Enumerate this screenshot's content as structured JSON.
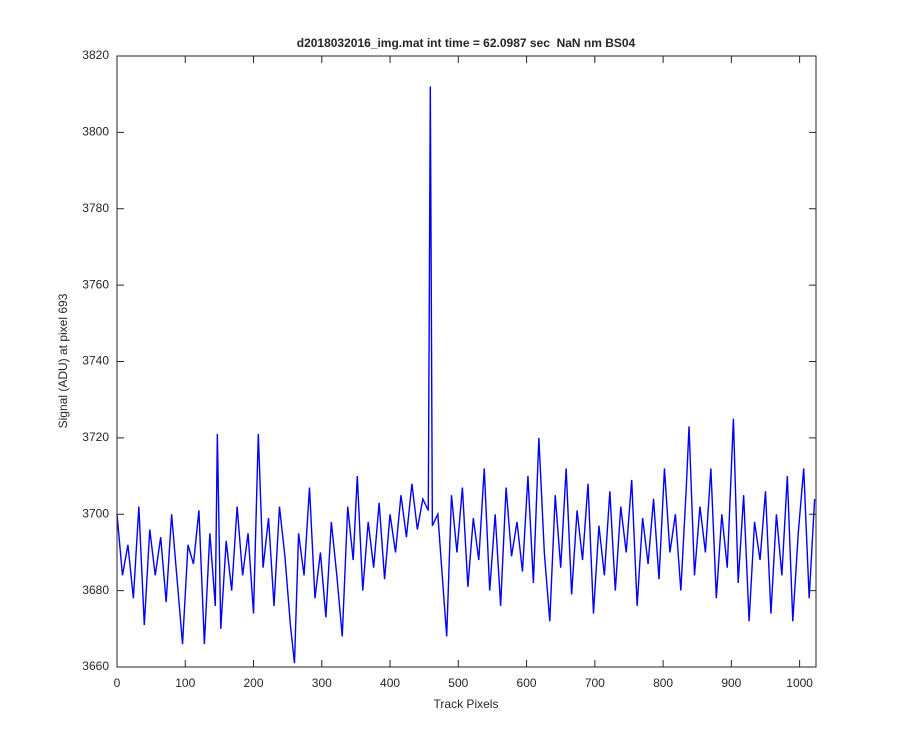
{
  "chart_data": {
    "type": "line",
    "title": "d2018032016_img.mat int time = 62.0987 sec  NaN nm BS04",
    "x_label": "Track Pixels",
    "y_label": "Signal (ADU) at pixel 693",
    "x": [
      0,
      8,
      16,
      24,
      32,
      40,
      48,
      56,
      64,
      72,
      80,
      88,
      96,
      104,
      112,
      120,
      128,
      136,
      144,
      147,
      152,
      160,
      168,
      176,
      184,
      192,
      200,
      207,
      214,
      222,
      230,
      238,
      246,
      254,
      260,
      266,
      274,
      282,
      290,
      298,
      306,
      314,
      322,
      330,
      338,
      346,
      352,
      360,
      368,
      376,
      384,
      392,
      400,
      408,
      416,
      424,
      432,
      440,
      448,
      456,
      459,
      462,
      470,
      476,
      483,
      490,
      498,
      506,
      514,
      522,
      530,
      538,
      546,
      554,
      562,
      570,
      578,
      586,
      594,
      602,
      610,
      618,
      626,
      634,
      642,
      650,
      658,
      666,
      674,
      682,
      690,
      698,
      706,
      714,
      722,
      730,
      738,
      746,
      754,
      762,
      770,
      778,
      786,
      794,
      802,
      810,
      818,
      826,
      834,
      838,
      846,
      854,
      862,
      870,
      878,
      886,
      894,
      903,
      910,
      918,
      926,
      934,
      942,
      950,
      958,
      966,
      974,
      982,
      990,
      998,
      1006,
      1014,
      1022
    ],
    "series": [
      {
        "color": "#0000ff",
        "values": [
          3700,
          3684,
          3692,
          3678,
          3702,
          3671,
          3696,
          3684,
          3694,
          3677,
          3700,
          3683,
          3666,
          3692,
          3687,
          3701,
          3666,
          3695,
          3676,
          3721,
          3670,
          3693,
          3680,
          3702,
          3684,
          3695,
          3674,
          3721,
          3686,
          3699,
          3676,
          3702,
          3689,
          3671,
          3661,
          3695,
          3684,
          3707,
          3678,
          3690,
          3673,
          3698,
          3684,
          3668,
          3702,
          3688,
          3710,
          3680,
          3698,
          3686,
          3703,
          3683,
          3700,
          3690,
          3705,
          3694,
          3708,
          3696,
          3704,
          3701,
          3812,
          3697,
          3700,
          3685,
          3668,
          3705,
          3690,
          3707,
          3681,
          3699,
          3688,
          3712,
          3680,
          3700,
          3676,
          3707,
          3689,
          3698,
          3685,
          3710,
          3682,
          3720,
          3690,
          3672,
          3705,
          3686,
          3712,
          3679,
          3701,
          3688,
          3708,
          3674,
          3697,
          3684,
          3706,
          3680,
          3702,
          3690,
          3709,
          3676,
          3699,
          3687,
          3704,
          3683,
          3712,
          3690,
          3700,
          3680,
          3707,
          3723,
          3684,
          3702,
          3690,
          3712,
          3678,
          3700,
          3686,
          3725,
          3682,
          3705,
          3672,
          3698,
          3688,
          3706,
          3674,
          3700,
          3684,
          3710,
          3672,
          3695,
          3712,
          3678,
          3704
        ]
      }
    ],
    "xlim": [
      0,
      1024
    ],
    "ylim": [
      3660,
      3820
    ],
    "xticks": [
      0,
      100,
      200,
      300,
      400,
      500,
      600,
      700,
      800,
      900,
      1000
    ],
    "yticks": [
      3660,
      3680,
      3700,
      3720,
      3740,
      3760,
      3780,
      3800,
      3820
    ]
  }
}
